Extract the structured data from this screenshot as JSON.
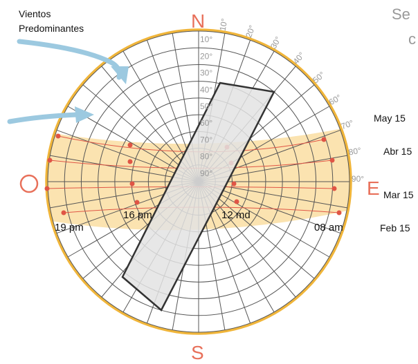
{
  "wind_label_line1": "Vientos",
  "wind_label_line2": "Predominantes",
  "partial_title_1": "Se",
  "partial_title_2": "c",
  "cardinals": {
    "north": "N",
    "south": "S",
    "east": "E",
    "west": "O"
  },
  "altitude_labels": [
    "10°",
    "20°",
    "30°",
    "40°",
    "50°",
    "60°",
    "70°",
    "80°",
    "90°"
  ],
  "azimuth_labels": [
    "10°",
    "20°",
    "30°",
    "40°",
    "50°",
    "60°",
    "70°",
    "80°",
    "90°"
  ],
  "month_labels": [
    "May 15",
    "Abr 15",
    "Mar 15",
    "Feb 15"
  ],
  "hour_labels": [
    "19 pm",
    "16 pm",
    "12 md",
    "08 am"
  ],
  "colors": {
    "outer_ring": "#f0b53a",
    "sun_band": "#fbe3b0",
    "sun_path": "#e05545",
    "grid": "#555555",
    "wind_arrow": "#9cc9e0",
    "building_fill": "#e3e3e3",
    "building_stroke": "#333333",
    "cardinal": "#e8705a"
  }
}
